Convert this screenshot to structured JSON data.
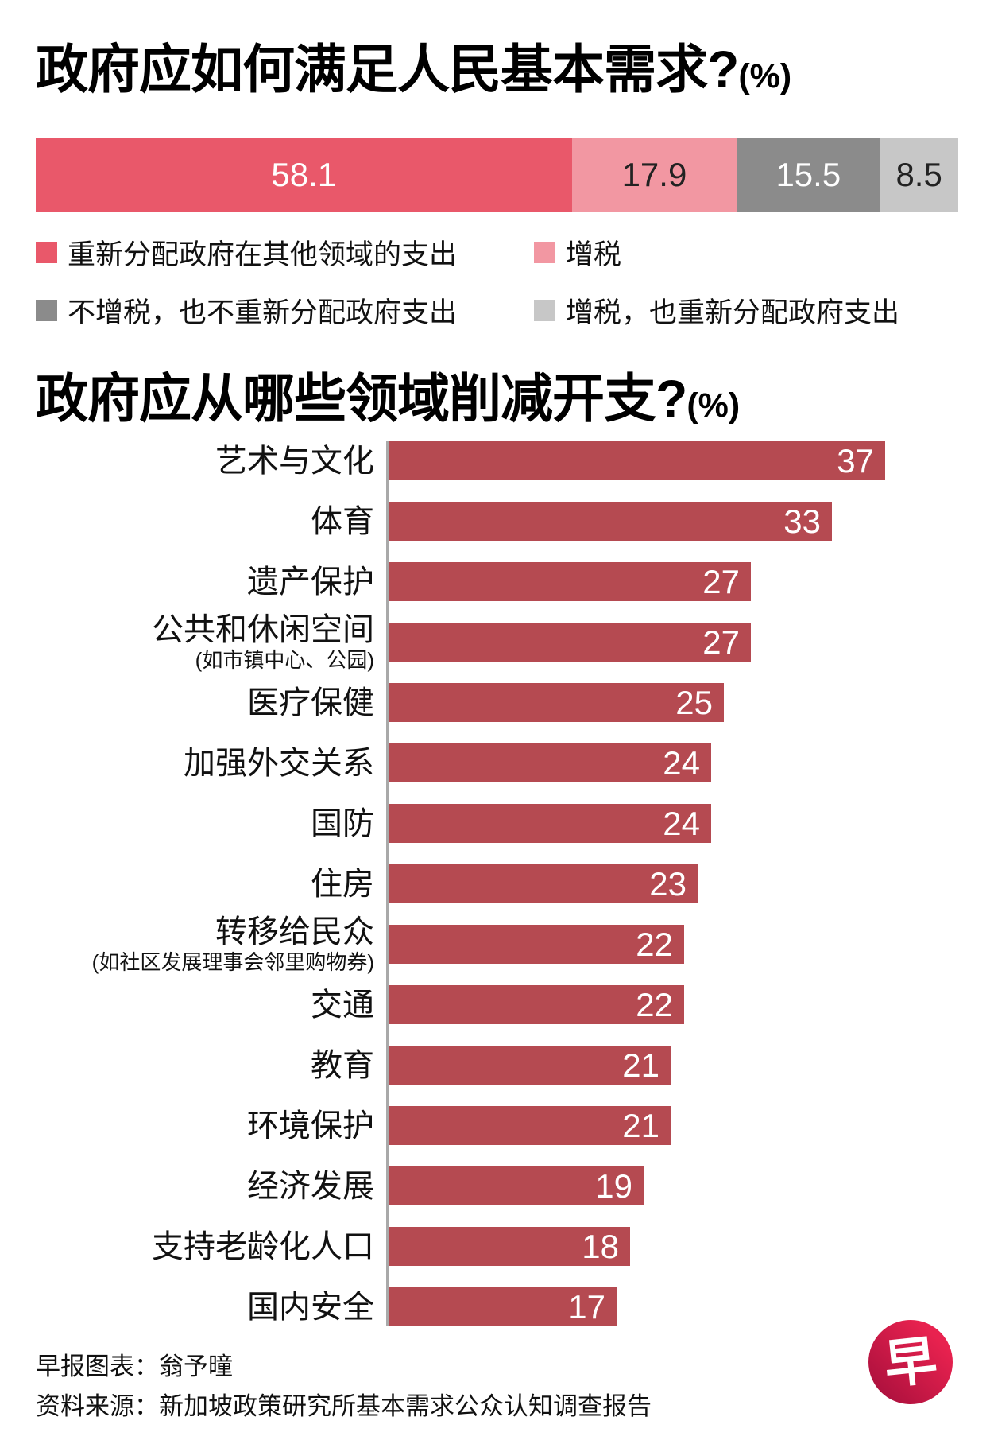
{
  "chart_data": [
    {
      "type": "stacked-bar",
      "title": "政府应如何满足人民基本需求?",
      "title_suffix": "(%)",
      "orientation": "horizontal",
      "total": 100,
      "legend_position": "below, two columns",
      "segments": [
        {
          "label": "重新分配政府在其他领域的支出",
          "value": 58.1,
          "value_label": "58.1",
          "color": "#e9586a",
          "text_color": "#ffffff"
        },
        {
          "label": "增税",
          "value": 17.9,
          "value_label": "17.9",
          "color": "#f297a2",
          "text_color": "#222222"
        },
        {
          "label": "不增税，也不重新分配政府支出",
          "value": 15.5,
          "value_label": "15.5",
          "color": "#8b8b8b",
          "text_color": "#ffffff"
        },
        {
          "label": "增税，也重新分配政府支出",
          "value": 8.5,
          "value_label": "8.5",
          "color": "#c7c7c7",
          "text_color": "#222222"
        }
      ]
    },
    {
      "type": "bar",
      "title": "政府应从哪些领域削减开支?",
      "title_suffix": "(%)",
      "orientation": "horizontal",
      "bar_color": "#b54a51",
      "value_label_color": "#ffffff",
      "xlim": [
        0,
        37
      ],
      "grid": false,
      "categories": [
        {
          "label": "艺术与文化",
          "sublabel": "",
          "value": 37
        },
        {
          "label": "体育",
          "sublabel": "",
          "value": 33
        },
        {
          "label": "遗产保护",
          "sublabel": "",
          "value": 27
        },
        {
          "label": "公共和休闲空间",
          "sublabel": "(如市镇中心、公园)",
          "value": 27
        },
        {
          "label": "医疗保健",
          "sublabel": "",
          "value": 25
        },
        {
          "label": "加强外交关系",
          "sublabel": "",
          "value": 24
        },
        {
          "label": "国防",
          "sublabel": "",
          "value": 24
        },
        {
          "label": "住房",
          "sublabel": "",
          "value": 23
        },
        {
          "label": "转移给民众",
          "sublabel": "(如社区发展理事会邻里购物券)",
          "value": 22
        },
        {
          "label": "交通",
          "sublabel": "",
          "value": 22
        },
        {
          "label": "教育",
          "sublabel": "",
          "value": 21
        },
        {
          "label": "环境保护",
          "sublabel": "",
          "value": 21
        },
        {
          "label": "经济发展",
          "sublabel": "",
          "value": 19
        },
        {
          "label": "支持老龄化人口",
          "sublabel": "",
          "value": 18
        },
        {
          "label": "国内安全",
          "sublabel": "",
          "value": 17
        }
      ]
    }
  ],
  "footer": {
    "credit": "早报图表：翁予曈",
    "source": "资料来源：新加坡政策研究所基本需求公众认知调查报告"
  },
  "logo": {
    "character": "早",
    "background_color": "#c4123f"
  }
}
